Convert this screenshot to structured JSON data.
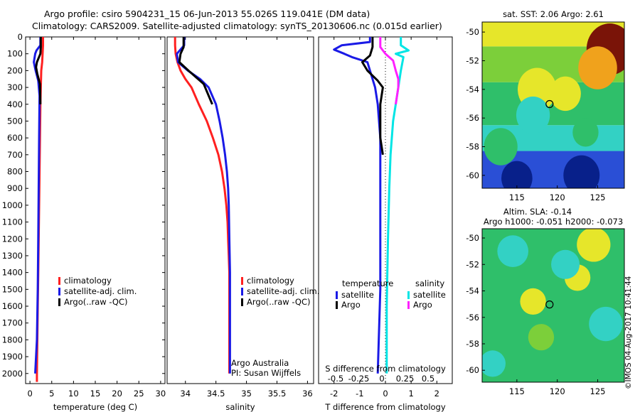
{
  "title": {
    "line1": "Argo profile: csiro 5904231_15 06-Jun-2013 55.026S 119.041E (DM data)",
    "line2": "Climatology: CARS2009. Satellite-adjusted climatology: synTS_20130606.nc (0.015d earlier)"
  },
  "stamp": "©IMOS 04-Aug-2017 10:41:44",
  "colors": {
    "clim": "#ff2020",
    "sat": "#1a1ae6",
    "argo": "#000000",
    "sat_s": "#00e5e5",
    "argo_s": "#ff20ff"
  },
  "chart_data": [
    {
      "type": "line",
      "name": "temperature",
      "xlabel": "temperature (deg C)",
      "ylabel": "",
      "xlim": [
        -1,
        31
      ],
      "ylim": [
        2060,
        0
      ],
      "xticks": [
        0,
        5,
        10,
        15,
        20,
        25,
        30
      ],
      "yticks": [
        0,
        100,
        200,
        300,
        400,
        500,
        600,
        700,
        800,
        900,
        1000,
        1100,
        1200,
        1300,
        1400,
        1500,
        1600,
        1700,
        1800,
        1900,
        2000
      ],
      "legend": [
        "climatology",
        "satellite-adj. clim.",
        "Argo(..raw -QC)"
      ],
      "series": [
        {
          "name": "climatology",
          "color": "#ff2020",
          "points": [
            [
              3.0,
              0
            ],
            [
              3.0,
              50
            ],
            [
              2.9,
              100
            ],
            [
              2.8,
              150
            ],
            [
              2.6,
              200
            ],
            [
              2.5,
              300
            ],
            [
              2.4,
              400
            ],
            [
              2.3,
              600
            ],
            [
              2.2,
              800
            ],
            [
              2.1,
              1000
            ],
            [
              2.0,
              1200
            ],
            [
              1.9,
              1400
            ],
            [
              1.8,
              1600
            ],
            [
              1.7,
              1800
            ],
            [
              1.6,
              2000
            ],
            [
              1.6,
              2050
            ]
          ]
        },
        {
          "name": "satellite-adj. clim.",
          "color": "#1a1ae6",
          "points": [
            [
              2.4,
              0
            ],
            [
              2.4,
              50
            ],
            [
              1.5,
              80
            ],
            [
              1.2,
              100
            ],
            [
              0.9,
              150
            ],
            [
              1.3,
              200
            ],
            [
              1.9,
              260
            ],
            [
              2.2,
              350
            ],
            [
              2.1,
              600
            ],
            [
              2.0,
              900
            ],
            [
              1.9,
              1200
            ],
            [
              1.8,
              1500
            ],
            [
              1.6,
              1800
            ],
            [
              1.3,
              1950
            ],
            [
              1.2,
              2000
            ]
          ]
        },
        {
          "name": "Argo(..raw -QC)",
          "color": "#000000",
          "points": [
            [
              2.5,
              0
            ],
            [
              2.5,
              60
            ],
            [
              2.4,
              100
            ],
            [
              1.6,
              150
            ],
            [
              1.4,
              180
            ],
            [
              1.7,
              220
            ],
            [
              2.3,
              280
            ],
            [
              2.4,
              400
            ]
          ]
        }
      ]
    },
    {
      "type": "line",
      "name": "salinity",
      "xlabel": "salinity",
      "ylabel": "",
      "xlim": [
        33.7,
        36.1
      ],
      "ylim": [
        2060,
        0
      ],
      "xticks": [
        34,
        34.5,
        35,
        35.5,
        36
      ],
      "xtick_labels": [
        "34",
        "34.5",
        "35",
        "35.5",
        "36"
      ],
      "legend": [
        "climatology",
        "satellite-adj. clim.",
        "Argo(..raw -QC)"
      ],
      "annotation": [
        "Argo Australia",
        "PI: Susan Wijffels"
      ],
      "series": [
        {
          "name": "climatology",
          "color": "#ff2020",
          "points": [
            [
              33.83,
              0
            ],
            [
              33.83,
              50
            ],
            [
              33.84,
              100
            ],
            [
              33.87,
              150
            ],
            [
              33.92,
              200
            ],
            [
              34.0,
              250
            ],
            [
              34.1,
              300
            ],
            [
              34.22,
              400
            ],
            [
              34.35,
              500
            ],
            [
              34.45,
              600
            ],
            [
              34.54,
              700
            ],
            [
              34.6,
              800
            ],
            [
              34.64,
              900
            ],
            [
              34.67,
              1000
            ],
            [
              34.69,
              1100
            ],
            [
              34.7,
              1200
            ],
            [
              34.71,
              1300
            ],
            [
              34.72,
              1400
            ],
            [
              34.72,
              1600
            ],
            [
              34.72,
              1800
            ],
            [
              34.72,
              2000
            ]
          ]
        },
        {
          "name": "satellite-adj. clim.",
          "color": "#1a1ae6",
          "points": [
            [
              33.98,
              0
            ],
            [
              33.98,
              50
            ],
            [
              33.86,
              100
            ],
            [
              33.88,
              150
            ],
            [
              34.04,
              200
            ],
            [
              34.24,
              250
            ],
            [
              34.38,
              300
            ],
            [
              34.5,
              400
            ],
            [
              34.56,
              500
            ],
            [
              34.61,
              600
            ],
            [
              34.65,
              700
            ],
            [
              34.68,
              800
            ],
            [
              34.7,
              900
            ],
            [
              34.71,
              1000
            ],
            [
              34.72,
              1200
            ],
            [
              34.73,
              1400
            ],
            [
              34.73,
              1600
            ],
            [
              34.73,
              1800
            ],
            [
              34.73,
              2000
            ]
          ]
        },
        {
          "name": "Argo(..raw -QC)",
          "color": "#000000",
          "points": [
            [
              33.97,
              0
            ],
            [
              33.97,
              60
            ],
            [
              33.92,
              100
            ],
            [
              33.9,
              150
            ],
            [
              34.05,
              200
            ],
            [
              34.3,
              280
            ],
            [
              34.44,
              400
            ]
          ]
        }
      ]
    },
    {
      "type": "line",
      "name": "differences",
      "xlabel": "T difference from climatology",
      "x2label": "S difference from climatology",
      "xlim": [
        -2.6,
        2.6
      ],
      "ylim": [
        2060,
        0
      ],
      "xticks": [
        -2,
        -1,
        0,
        1,
        2
      ],
      "x2ticks": [
        -0.5,
        -0.25,
        0,
        0.25,
        0.5
      ],
      "x2tick_labels": [
        "-0.5",
        "-0.25",
        "0",
        "0.25",
        "0.5"
      ],
      "legend_temperature": {
        "title": "temperature",
        "items": [
          "satellite",
          "Argo"
        ]
      },
      "legend_salinity": {
        "title": "salinity",
        "items": [
          "satellite",
          "Argo"
        ]
      },
      "series": [
        {
          "name": "T satellite",
          "color": "#1a1ae6",
          "points": [
            [
              -0.6,
              0
            ],
            [
              -0.6,
              30
            ],
            [
              -1.7,
              50
            ],
            [
              -2.0,
              75
            ],
            [
              -1.6,
              100
            ],
            [
              -1.3,
              120
            ],
            [
              -0.7,
              150
            ],
            [
              -0.6,
              200
            ],
            [
              -0.4,
              300
            ],
            [
              -0.3,
              400
            ],
            [
              -0.2,
              600
            ],
            [
              -0.2,
              1000
            ],
            [
              -0.2,
              1500
            ],
            [
              -0.3,
              2000
            ]
          ]
        },
        {
          "name": "T Argo",
          "color": "#000000",
          "points": [
            [
              -0.5,
              0
            ],
            [
              -0.5,
              60
            ],
            [
              -0.6,
              110
            ],
            [
              -0.9,
              150
            ],
            [
              -0.7,
              200
            ],
            [
              -0.3,
              260
            ],
            [
              -0.1,
              300
            ],
            [
              -0.2,
              400
            ],
            [
              -0.2,
              600
            ],
            [
              -0.1,
              700
            ]
          ]
        },
        {
          "name": "S satellite",
          "color": "#00e5e5",
          "points": [
            [
              0.6,
              0
            ],
            [
              0.6,
              50
            ],
            [
              0.9,
              80
            ],
            [
              0.4,
              100
            ],
            [
              0.7,
              120
            ],
            [
              0.6,
              200
            ],
            [
              0.5,
              300
            ],
            [
              0.4,
              400
            ],
            [
              0.3,
              500
            ],
            [
              0.2,
              700
            ],
            [
              0.15,
              900
            ],
            [
              0.1,
              1200
            ],
            [
              0.05,
              1600
            ],
            [
              0.05,
              2000
            ]
          ]
        },
        {
          "name": "S Argo",
          "color": "#ff20ff",
          "points": [
            [
              -0.2,
              0
            ],
            [
              -0.2,
              60
            ],
            [
              -0.1,
              80
            ],
            [
              0.0,
              100
            ],
            [
              0.3,
              140
            ],
            [
              0.4,
              200
            ],
            [
              0.5,
              250
            ],
            [
              0.5,
              300
            ],
            [
              0.4,
              400
            ]
          ]
        }
      ]
    },
    {
      "type": "heatmap",
      "name": "sst-map",
      "title": "sat. SST: 2.06 Argo: 2.61",
      "xticks": [
        115,
        120,
        125
      ],
      "yticks": [
        -50,
        -52,
        -54,
        -56,
        -58,
        -60
      ],
      "xlim": [
        110.7,
        128.3
      ],
      "ylim": [
        -60.9,
        -49.3
      ],
      "marker": {
        "lon": 119.041,
        "lat": -55.026
      },
      "colorscale": [
        "#08208a",
        "#2a4fd6",
        "#1da0e0",
        "#33d1c4",
        "#2fbf6a",
        "#7ccf3a",
        "#e6e62a",
        "#f0a21c",
        "#c04010",
        "#7a1408"
      ],
      "features": [
        {
          "kind": "band",
          "lat": [
            -60.9,
            -58.3
          ],
          "level": 1
        },
        {
          "kind": "band",
          "lat": [
            -58.3,
            -56.5
          ],
          "level": 3
        },
        {
          "kind": "band",
          "lat": [
            -56.5,
            -53.5
          ],
          "level": 4
        },
        {
          "kind": "band",
          "lat": [
            -53.5,
            -51.0
          ],
          "level": 5
        },
        {
          "kind": "band",
          "lat": [
            -51.0,
            -49.3
          ],
          "level": 6
        },
        {
          "kind": "blob",
          "lon": 126.5,
          "lat": -51.2,
          "r": 1.8,
          "level": 9
        },
        {
          "kind": "blob",
          "lon": 125.0,
          "lat": -52.5,
          "r": 1.5,
          "level": 7
        },
        {
          "kind": "blob",
          "lon": 117.5,
          "lat": -54.0,
          "r": 1.5,
          "level": 6
        },
        {
          "kind": "blob",
          "lon": 121.0,
          "lat": -54.3,
          "r": 1.2,
          "level": 6
        },
        {
          "kind": "blob",
          "lon": 117.0,
          "lat": -55.8,
          "r": 1.3,
          "level": 3
        },
        {
          "kind": "blob",
          "lon": 113.0,
          "lat": -58.0,
          "r": 1.3,
          "level": 4
        },
        {
          "kind": "blob",
          "lon": 123.5,
          "lat": -57.0,
          "r": 1.0,
          "level": 4
        },
        {
          "kind": "blob",
          "lon": 123.0,
          "lat": -60.0,
          "r": 1.4,
          "level": 0
        },
        {
          "kind": "blob",
          "lon": 115.0,
          "lat": -60.2,
          "r": 1.2,
          "level": 0
        }
      ]
    },
    {
      "type": "heatmap",
      "name": "sla-map",
      "title": "Altim. SLA: -0.14",
      "subtitle": "Argo h1000: -0.051 h2000: -0.073",
      "xticks": [
        115,
        120,
        125
      ],
      "yticks": [
        -50,
        -52,
        -54,
        -56,
        -58,
        -60
      ],
      "xlim": [
        110.7,
        128.3
      ],
      "ylim": [
        -60.9,
        -49.3
      ],
      "marker": {
        "lon": 119.041,
        "lat": -55.026
      },
      "colorscale": [
        "#08208a",
        "#2a4fd6",
        "#1da0e0",
        "#33d1c4",
        "#2fbf6a",
        "#7ccf3a",
        "#e6e62a",
        "#f0a21c",
        "#c04010",
        "#7a1408"
      ],
      "features": [
        {
          "kind": "band",
          "lat": [
            -60.9,
            -49.3
          ],
          "level": 4
        },
        {
          "kind": "blob",
          "lon": 124.5,
          "lat": -50.5,
          "r": 1.3,
          "level": 6
        },
        {
          "kind": "blob",
          "lon": 122.5,
          "lat": -53.0,
          "r": 1.0,
          "level": 6
        },
        {
          "kind": "blob",
          "lon": 117.0,
          "lat": -54.8,
          "r": 1.0,
          "level": 6
        },
        {
          "kind": "blob",
          "lon": 121.0,
          "lat": -52.0,
          "r": 1.1,
          "level": 3
        },
        {
          "kind": "blob",
          "lon": 114.5,
          "lat": -51.0,
          "r": 1.2,
          "level": 3
        },
        {
          "kind": "blob",
          "lon": 126.0,
          "lat": -56.5,
          "r": 1.3,
          "level": 3
        },
        {
          "kind": "blob",
          "lon": 112.0,
          "lat": -59.5,
          "r": 1.0,
          "level": 3
        },
        {
          "kind": "blob",
          "lon": 118.0,
          "lat": -57.5,
          "r": 1.0,
          "level": 5
        }
      ]
    }
  ]
}
